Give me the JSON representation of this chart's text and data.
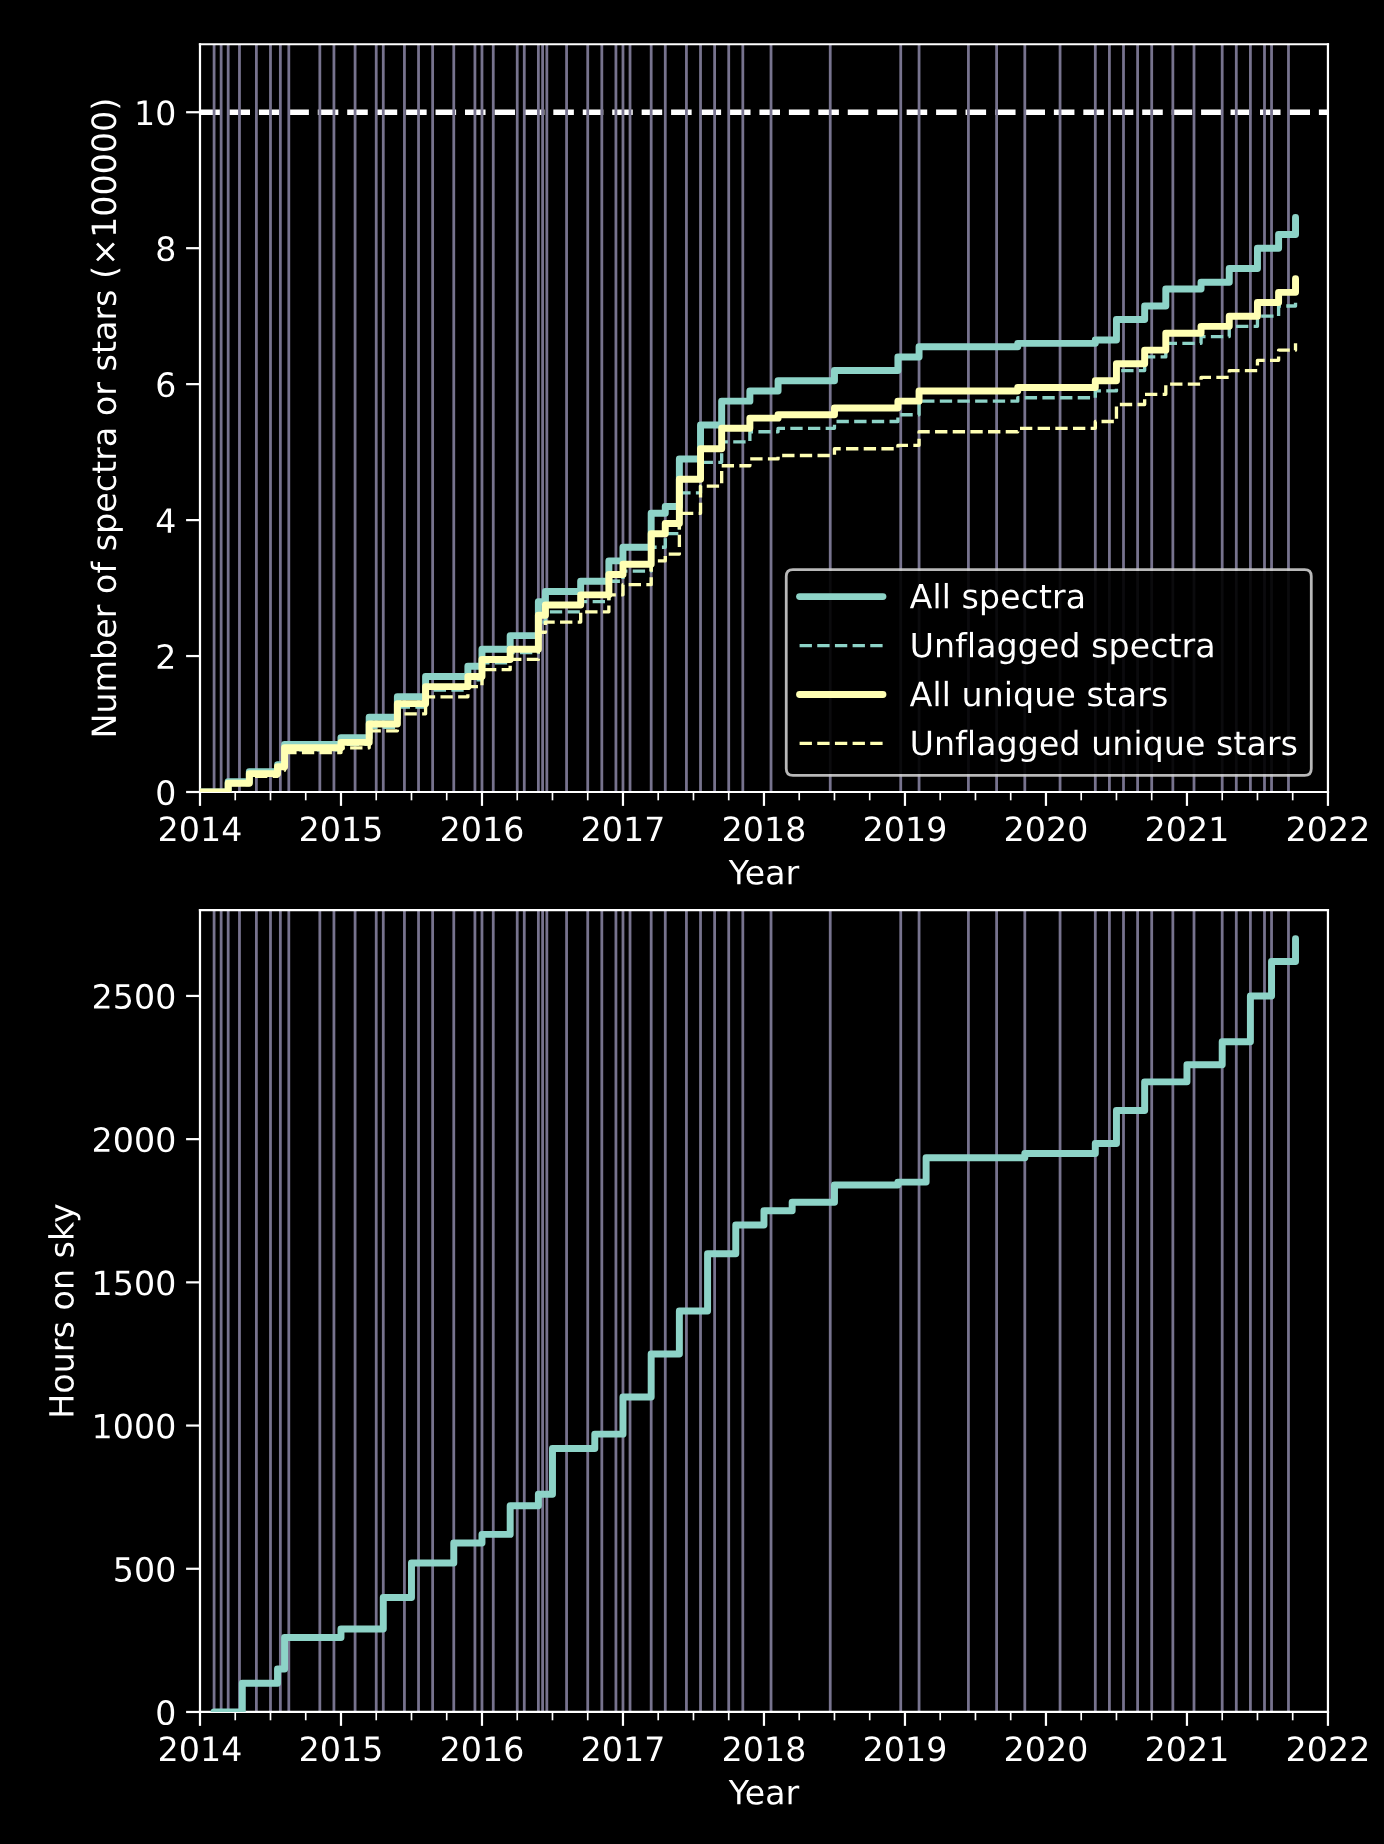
{
  "chart_data": [
    {
      "type": "step",
      "xlabel": "Year",
      "ylabel": "Number of spectra or stars (×100000)",
      "xlim": [
        2014,
        2022
      ],
      "xticks": [
        2014,
        2015,
        2016,
        2017,
        2018,
        2019,
        2020,
        2021,
        2022
      ],
      "ylim": [
        0,
        11
      ],
      "yticks": [
        0,
        2,
        4,
        6,
        8,
        10
      ],
      "legend": "bottom right",
      "grid": false,
      "x": [
        2014.0,
        2014.2,
        2014.35,
        2014.55,
        2014.6,
        2015.0,
        2015.2,
        2015.4,
        2015.6,
        2015.9,
        2016.0,
        2016.2,
        2016.4,
        2016.45,
        2016.7,
        2016.9,
        2017.0,
        2017.2,
        2017.3,
        2017.4,
        2017.55,
        2017.7,
        2017.9,
        2018.1,
        2018.5,
        2018.95,
        2019.1,
        2019.8,
        2020.35,
        2020.5,
        2020.7,
        2020.85,
        2021.1,
        2021.3,
        2021.5,
        2021.65,
        2021.77
      ],
      "series": [
        {
          "name": "All spectra",
          "color": "#8dd3c7",
          "line_style": "solid",
          "values": [
            0,
            0.15,
            0.3,
            0.4,
            0.7,
            0.8,
            1.1,
            1.4,
            1.7,
            1.85,
            2.1,
            2.3,
            2.8,
            2.95,
            3.1,
            3.4,
            3.6,
            4.1,
            4.2,
            4.9,
            5.4,
            5.75,
            5.9,
            6.05,
            6.2,
            6.4,
            6.55,
            6.6,
            6.65,
            6.95,
            7.15,
            7.4,
            7.5,
            7.7,
            8.0,
            8.2,
            8.45
          ]
        },
        {
          "name": "Unflagged spectra",
          "color": "#8dd3c7",
          "line_style": "dashed",
          "values": [
            0,
            0.12,
            0.25,
            0.35,
            0.62,
            0.7,
            0.95,
            1.25,
            1.5,
            1.65,
            1.9,
            2.05,
            2.5,
            2.65,
            2.8,
            3.1,
            3.25,
            3.6,
            3.8,
            4.4,
            4.85,
            5.15,
            5.3,
            5.35,
            5.45,
            5.55,
            5.75,
            5.8,
            5.9,
            6.2,
            6.4,
            6.6,
            6.7,
            6.85,
            7.0,
            7.15,
            7.25
          ]
        },
        {
          "name": "All unique stars",
          "color": "#ffffb3",
          "line_style": "solid",
          "values": [
            0,
            0.13,
            0.27,
            0.37,
            0.65,
            0.73,
            1.0,
            1.3,
            1.55,
            1.7,
            1.95,
            2.1,
            2.6,
            2.75,
            2.9,
            3.2,
            3.35,
            3.8,
            3.95,
            4.6,
            5.05,
            5.35,
            5.5,
            5.55,
            5.65,
            5.75,
            5.9,
            5.95,
            6.05,
            6.3,
            6.5,
            6.75,
            6.85,
            7.0,
            7.2,
            7.35,
            7.55
          ]
        },
        {
          "name": "Unflagged unique stars",
          "color": "#ffffb3",
          "line_style": "dashed",
          "values": [
            0,
            0.11,
            0.23,
            0.32,
            0.58,
            0.65,
            0.9,
            1.15,
            1.4,
            1.55,
            1.8,
            1.95,
            2.35,
            2.5,
            2.65,
            2.9,
            3.05,
            3.4,
            3.5,
            4.1,
            4.5,
            4.8,
            4.9,
            4.95,
            5.05,
            5.1,
            5.3,
            5.35,
            5.45,
            5.7,
            5.85,
            6.0,
            6.1,
            6.2,
            6.35,
            6.5,
            6.6
          ]
        }
      ],
      "ref_lines": [
        {
          "axis": "y",
          "value": 10,
          "color": "#ffffff",
          "line_style": "dashed"
        },
        {
          "axis": "x",
          "value": 2014.1,
          "color": "#77738e"
        },
        {
          "axis": "x",
          "value": 2014.15,
          "color": "#77738e"
        },
        {
          "axis": "x",
          "value": 2014.2,
          "color": "#77738e"
        },
        {
          "axis": "x",
          "value": 2014.28,
          "color": "#77738e"
        },
        {
          "axis": "x",
          "value": 2014.4,
          "color": "#77738e"
        },
        {
          "axis": "x",
          "value": 2014.5,
          "color": "#77738e"
        },
        {
          "axis": "x",
          "value": 2014.57,
          "color": "#77738e"
        },
        {
          "axis": "x",
          "value": 2014.63,
          "color": "#77738e"
        },
        {
          "axis": "x",
          "value": 2014.85,
          "color": "#77738e"
        },
        {
          "axis": "x",
          "value": 2014.95,
          "color": "#77738e"
        },
        {
          "axis": "x",
          "value": 2015.1,
          "color": "#77738e"
        },
        {
          "axis": "x",
          "value": 2015.25,
          "color": "#77738e"
        },
        {
          "axis": "x",
          "value": 2015.3,
          "color": "#77738e"
        },
        {
          "axis": "x",
          "value": 2015.45,
          "color": "#77738e"
        },
        {
          "axis": "x",
          "value": 2015.55,
          "color": "#77738e"
        },
        {
          "axis": "x",
          "value": 2015.65,
          "color": "#77738e"
        },
        {
          "axis": "x",
          "value": 2015.8,
          "color": "#77738e"
        },
        {
          "axis": "x",
          "value": 2015.95,
          "color": "#77738e"
        },
        {
          "axis": "x",
          "value": 2016.0,
          "color": "#77738e"
        },
        {
          "axis": "x",
          "value": 2016.08,
          "color": "#77738e"
        },
        {
          "axis": "x",
          "value": 2016.25,
          "color": "#77738e"
        },
        {
          "axis": "x",
          "value": 2016.3,
          "color": "#77738e"
        },
        {
          "axis": "x",
          "value": 2016.4,
          "color": "#77738e"
        },
        {
          "axis": "x",
          "value": 2016.43,
          "color": "#77738e"
        },
        {
          "axis": "x",
          "value": 2016.46,
          "color": "#77738e"
        },
        {
          "axis": "x",
          "value": 2016.6,
          "color": "#77738e"
        },
        {
          "axis": "x",
          "value": 2016.75,
          "color": "#77738e"
        },
        {
          "axis": "x",
          "value": 2016.85,
          "color": "#77738e"
        },
        {
          "axis": "x",
          "value": 2016.95,
          "color": "#77738e"
        },
        {
          "axis": "x",
          "value": 2017.0,
          "color": "#77738e"
        },
        {
          "axis": "x",
          "value": 2017.05,
          "color": "#77738e"
        },
        {
          "axis": "x",
          "value": 2017.2,
          "color": "#77738e"
        },
        {
          "axis": "x",
          "value": 2017.3,
          "color": "#77738e"
        },
        {
          "axis": "x",
          "value": 2017.45,
          "color": "#77738e"
        },
        {
          "axis": "x",
          "value": 2017.55,
          "color": "#77738e"
        },
        {
          "axis": "x",
          "value": 2017.65,
          "color": "#77738e"
        },
        {
          "axis": "x",
          "value": 2017.75,
          "color": "#77738e"
        },
        {
          "axis": "x",
          "value": 2017.85,
          "color": "#77738e"
        },
        {
          "axis": "x",
          "value": 2018.05,
          "color": "#77738e"
        },
        {
          "axis": "x",
          "value": 2018.47,
          "color": "#77738e"
        },
        {
          "axis": "x",
          "value": 2018.97,
          "color": "#77738e"
        },
        {
          "axis": "x",
          "value": 2019.1,
          "color": "#77738e"
        },
        {
          "axis": "x",
          "value": 2019.45,
          "color": "#77738e"
        },
        {
          "axis": "x",
          "value": 2019.65,
          "color": "#77738e"
        },
        {
          "axis": "x",
          "value": 2019.85,
          "color": "#77738e"
        },
        {
          "axis": "x",
          "value": 2020.1,
          "color": "#77738e"
        },
        {
          "axis": "x",
          "value": 2020.35,
          "color": "#77738e"
        },
        {
          "axis": "x",
          "value": 2020.45,
          "color": "#77738e"
        },
        {
          "axis": "x",
          "value": 2020.55,
          "color": "#77738e"
        },
        {
          "axis": "x",
          "value": 2020.65,
          "color": "#77738e"
        },
        {
          "axis": "x",
          "value": 2020.75,
          "color": "#77738e"
        },
        {
          "axis": "x",
          "value": 2020.9,
          "color": "#77738e"
        },
        {
          "axis": "x",
          "value": 2021.05,
          "color": "#77738e"
        },
        {
          "axis": "x",
          "value": 2021.25,
          "color": "#77738e"
        },
        {
          "axis": "x",
          "value": 2021.35,
          "color": "#77738e"
        },
        {
          "axis": "x",
          "value": 2021.45,
          "color": "#77738e"
        },
        {
          "axis": "x",
          "value": 2021.55,
          "color": "#77738e"
        },
        {
          "axis": "x",
          "value": 2021.6,
          "color": "#77738e"
        },
        {
          "axis": "x",
          "value": 2021.72,
          "color": "#77738e"
        }
      ]
    },
    {
      "type": "step",
      "xlabel": "Year",
      "ylabel": "Hours on sky",
      "xlim": [
        2014,
        2022
      ],
      "xticks": [
        2014,
        2015,
        2016,
        2017,
        2018,
        2019,
        2020,
        2021,
        2022
      ],
      "ylim": [
        0,
        2800
      ],
      "yticks": [
        0,
        500,
        1000,
        1500,
        2000,
        2500
      ],
      "grid": false,
      "x": [
        2014.1,
        2014.3,
        2014.55,
        2014.6,
        2015.0,
        2015.3,
        2015.5,
        2015.8,
        2016.0,
        2016.2,
        2016.4,
        2016.5,
        2016.8,
        2017.0,
        2017.2,
        2017.4,
        2017.6,
        2017.8,
        2018.0,
        2018.2,
        2018.5,
        2018.95,
        2019.15,
        2019.85,
        2020.35,
        2020.5,
        2020.7,
        2021.0,
        2021.25,
        2021.45,
        2021.6,
        2021.77
      ],
      "series": [
        {
          "color": "#8dd3c7",
          "line_style": "solid",
          "values": [
            0,
            100,
            150,
            260,
            290,
            400,
            520,
            590,
            620,
            720,
            760,
            920,
            970,
            1100,
            1250,
            1400,
            1600,
            1700,
            1750,
            1780,
            1840,
            1850,
            1935,
            1950,
            1985,
            2100,
            2200,
            2260,
            2340,
            2500,
            2620,
            2700
          ]
        }
      ],
      "ref_lines": [
        {
          "axis": "x",
          "value": 2014.1,
          "color": "#77738e"
        },
        {
          "axis": "x",
          "value": 2014.15,
          "color": "#77738e"
        },
        {
          "axis": "x",
          "value": 2014.2,
          "color": "#77738e"
        },
        {
          "axis": "x",
          "value": 2014.28,
          "color": "#77738e"
        },
        {
          "axis": "x",
          "value": 2014.4,
          "color": "#77738e"
        },
        {
          "axis": "x",
          "value": 2014.5,
          "color": "#77738e"
        },
        {
          "axis": "x",
          "value": 2014.57,
          "color": "#77738e"
        },
        {
          "axis": "x",
          "value": 2014.63,
          "color": "#77738e"
        },
        {
          "axis": "x",
          "value": 2014.85,
          "color": "#77738e"
        },
        {
          "axis": "x",
          "value": 2014.95,
          "color": "#77738e"
        },
        {
          "axis": "x",
          "value": 2015.1,
          "color": "#77738e"
        },
        {
          "axis": "x",
          "value": 2015.25,
          "color": "#77738e"
        },
        {
          "axis": "x",
          "value": 2015.3,
          "color": "#77738e"
        },
        {
          "axis": "x",
          "value": 2015.45,
          "color": "#77738e"
        },
        {
          "axis": "x",
          "value": 2015.55,
          "color": "#77738e"
        },
        {
          "axis": "x",
          "value": 2015.65,
          "color": "#77738e"
        },
        {
          "axis": "x",
          "value": 2015.8,
          "color": "#77738e"
        },
        {
          "axis": "x",
          "value": 2015.95,
          "color": "#77738e"
        },
        {
          "axis": "x",
          "value": 2016.0,
          "color": "#77738e"
        },
        {
          "axis": "x",
          "value": 2016.08,
          "color": "#77738e"
        },
        {
          "axis": "x",
          "value": 2016.25,
          "color": "#77738e"
        },
        {
          "axis": "x",
          "value": 2016.3,
          "color": "#77738e"
        },
        {
          "axis": "x",
          "value": 2016.4,
          "color": "#77738e"
        },
        {
          "axis": "x",
          "value": 2016.43,
          "color": "#77738e"
        },
        {
          "axis": "x",
          "value": 2016.46,
          "color": "#77738e"
        },
        {
          "axis": "x",
          "value": 2016.6,
          "color": "#77738e"
        },
        {
          "axis": "x",
          "value": 2016.75,
          "color": "#77738e"
        },
        {
          "axis": "x",
          "value": 2016.85,
          "color": "#77738e"
        },
        {
          "axis": "x",
          "value": 2016.95,
          "color": "#77738e"
        },
        {
          "axis": "x",
          "value": 2017.0,
          "color": "#77738e"
        },
        {
          "axis": "x",
          "value": 2017.05,
          "color": "#77738e"
        },
        {
          "axis": "x",
          "value": 2017.2,
          "color": "#77738e"
        },
        {
          "axis": "x",
          "value": 2017.3,
          "color": "#77738e"
        },
        {
          "axis": "x",
          "value": 2017.45,
          "color": "#77738e"
        },
        {
          "axis": "x",
          "value": 2017.55,
          "color": "#77738e"
        },
        {
          "axis": "x",
          "value": 2017.65,
          "color": "#77738e"
        },
        {
          "axis": "x",
          "value": 2017.75,
          "color": "#77738e"
        },
        {
          "axis": "x",
          "value": 2017.85,
          "color": "#77738e"
        },
        {
          "axis": "x",
          "value": 2018.05,
          "color": "#77738e"
        },
        {
          "axis": "x",
          "value": 2018.47,
          "color": "#77738e"
        },
        {
          "axis": "x",
          "value": 2018.97,
          "color": "#77738e"
        },
        {
          "axis": "x",
          "value": 2019.1,
          "color": "#77738e"
        },
        {
          "axis": "x",
          "value": 2019.45,
          "color": "#77738e"
        },
        {
          "axis": "x",
          "value": 2019.65,
          "color": "#77738e"
        },
        {
          "axis": "x",
          "value": 2019.85,
          "color": "#77738e"
        },
        {
          "axis": "x",
          "value": 2020.1,
          "color": "#77738e"
        },
        {
          "axis": "x",
          "value": 2020.35,
          "color": "#77738e"
        },
        {
          "axis": "x",
          "value": 2020.45,
          "color": "#77738e"
        },
        {
          "axis": "x",
          "value": 2020.55,
          "color": "#77738e"
        },
        {
          "axis": "x",
          "value": 2020.65,
          "color": "#77738e"
        },
        {
          "axis": "x",
          "value": 2020.75,
          "color": "#77738e"
        },
        {
          "axis": "x",
          "value": 2020.9,
          "color": "#77738e"
        },
        {
          "axis": "x",
          "value": 2021.05,
          "color": "#77738e"
        },
        {
          "axis": "x",
          "value": 2021.25,
          "color": "#77738e"
        },
        {
          "axis": "x",
          "value": 2021.35,
          "color": "#77738e"
        },
        {
          "axis": "x",
          "value": 2021.45,
          "color": "#77738e"
        },
        {
          "axis": "x",
          "value": 2021.55,
          "color": "#77738e"
        },
        {
          "axis": "x",
          "value": 2021.6,
          "color": "#77738e"
        },
        {
          "axis": "x",
          "value": 2021.72,
          "color": "#77738e"
        }
      ]
    }
  ]
}
